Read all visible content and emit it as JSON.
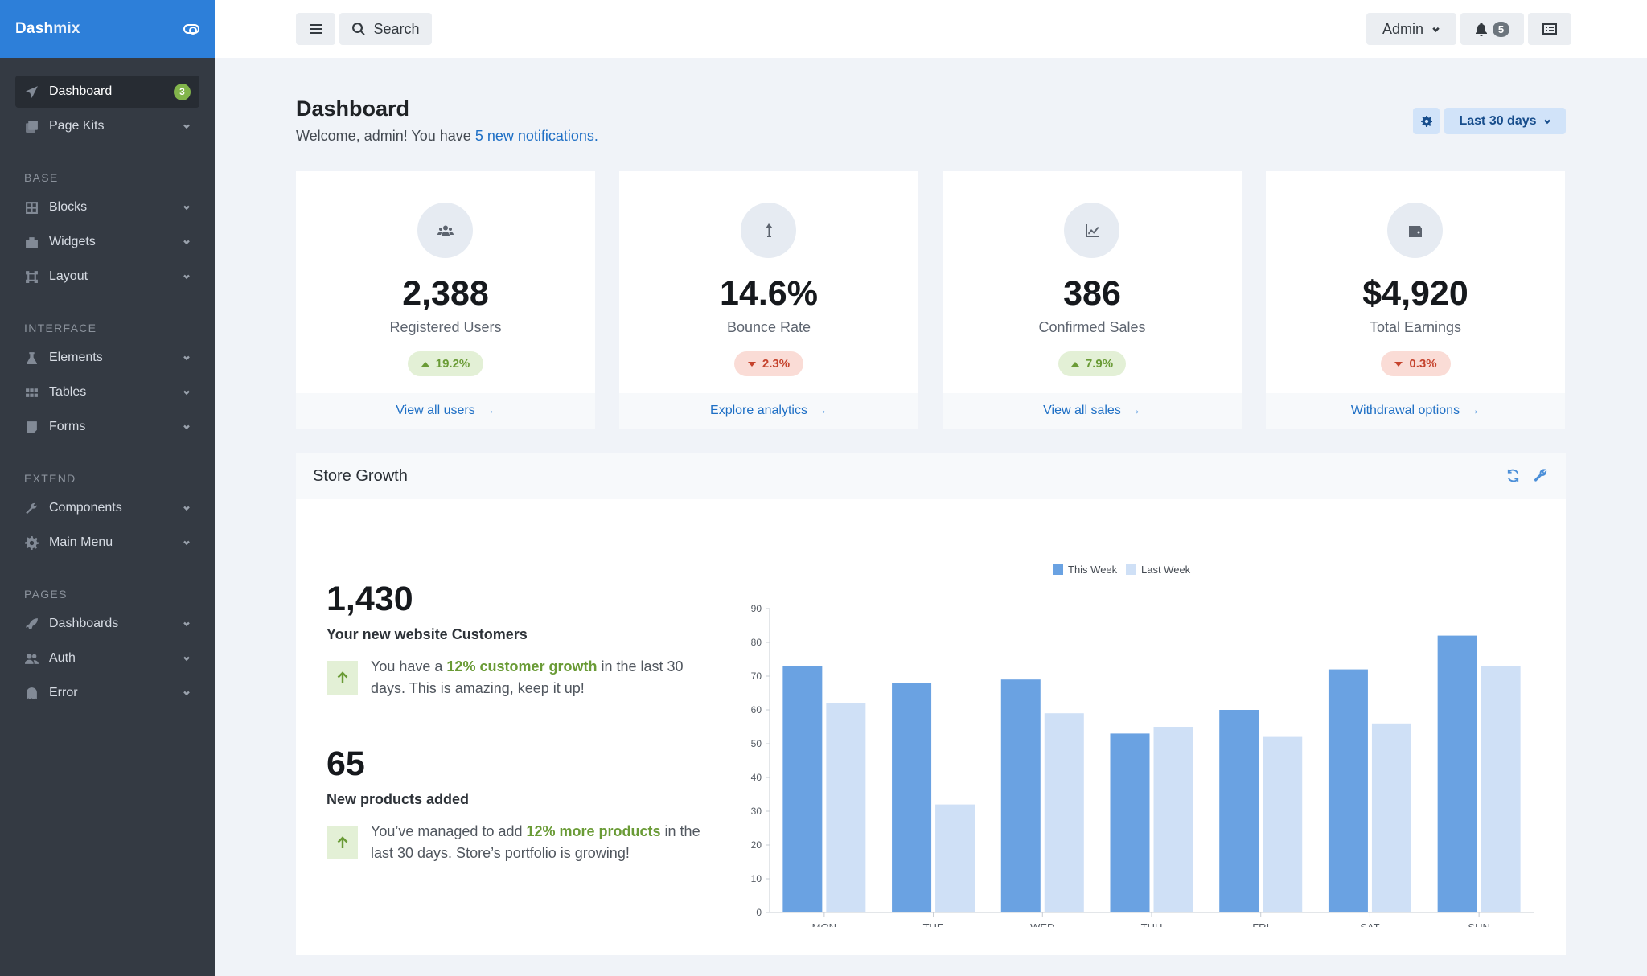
{
  "sidebar": {
    "brand_a": "Dash",
    "brand_b": "mix",
    "items": [
      {
        "label": "Dashboard",
        "badge": "3",
        "icon": "paper-plane-icon"
      },
      {
        "label": "Page Kits",
        "icon": "copy-icon"
      }
    ],
    "sections": [
      {
        "title": "BASE",
        "items": [
          {
            "label": "Blocks",
            "icon": "grid-icon"
          },
          {
            "label": "Widgets",
            "icon": "puzzle-icon"
          },
          {
            "label": "Layout",
            "icon": "vector-square-icon"
          }
        ]
      },
      {
        "title": "INTERFACE",
        "items": [
          {
            "label": "Elements",
            "icon": "flask-icon"
          },
          {
            "label": "Tables",
            "icon": "table-icon"
          },
          {
            "label": "Forms",
            "icon": "form-icon"
          }
        ]
      },
      {
        "title": "EXTEND",
        "items": [
          {
            "label": "Components",
            "icon": "wrench-icon"
          },
          {
            "label": "Main Menu",
            "icon": "cog-icon"
          }
        ]
      },
      {
        "title": "PAGES",
        "items": [
          {
            "label": "Dashboards",
            "icon": "rocket-icon"
          },
          {
            "label": "Auth",
            "icon": "users-icon"
          },
          {
            "label": "Error",
            "icon": "ghost-icon"
          }
        ]
      }
    ]
  },
  "header": {
    "search_label": "Search",
    "user_label": "Admin",
    "notifications_count": "5"
  },
  "page": {
    "title": "Dashboard",
    "welcome_prefix": "Welcome, admin! You have ",
    "welcome_link": "5 new notifications",
    "welcome_suffix": ".",
    "range_label": "Last 30 days"
  },
  "stats": [
    {
      "value": "2,388",
      "label": "Registered Users",
      "change": "19.2%",
      "trend": "up",
      "link": "View all users",
      "icon": "users-icon"
    },
    {
      "value": "14.6%",
      "label": "Bounce Rate",
      "change": "2.3%",
      "trend": "down",
      "link": "Explore analytics",
      "icon": "level-up-icon"
    },
    {
      "value": "386",
      "label": "Confirmed Sales",
      "change": "7.9%",
      "trend": "up",
      "link": "View all sales",
      "icon": "chart-line-icon"
    },
    {
      "value": "$4,920",
      "label": "Total Earnings",
      "change": "0.3%",
      "trend": "down",
      "link": "Withdrawal options",
      "icon": "wallet-icon"
    }
  ],
  "growth": {
    "title": "Store Growth",
    "metric1": {
      "value": "1,430",
      "label": "Your new website Customers",
      "desc_a": "You have a ",
      "desc_hl": "12% customer growth",
      "desc_b": " in the last 30 days. This is amazing, keep it up!"
    },
    "metric2": {
      "value": "65",
      "label": "New products added",
      "desc_a": "You’ve managed to add ",
      "desc_hl": "12% more products",
      "desc_b": " in the last 30 days. Store’s portfolio is growing!"
    }
  },
  "colors": {
    "this_week": "#6aa2e2",
    "last_week": "#cfe0f6",
    "accent": "#2d7fd9"
  },
  "chart_data": {
    "type": "bar",
    "categories": [
      "MON",
      "TUE",
      "WED",
      "THU",
      "FRI",
      "SAT",
      "SUN"
    ],
    "series": [
      {
        "name": "This Week",
        "values": [
          73,
          68,
          69,
          53,
          60,
          72,
          82
        ]
      },
      {
        "name": "Last Week",
        "values": [
          62,
          32,
          59,
          55,
          52,
          56,
          73
        ]
      }
    ],
    "ylim": [
      0,
      90
    ],
    "yticks": [
      0,
      10,
      20,
      30,
      40,
      50,
      60,
      70,
      80,
      90
    ],
    "legend": "top-center",
    "grid": false
  }
}
